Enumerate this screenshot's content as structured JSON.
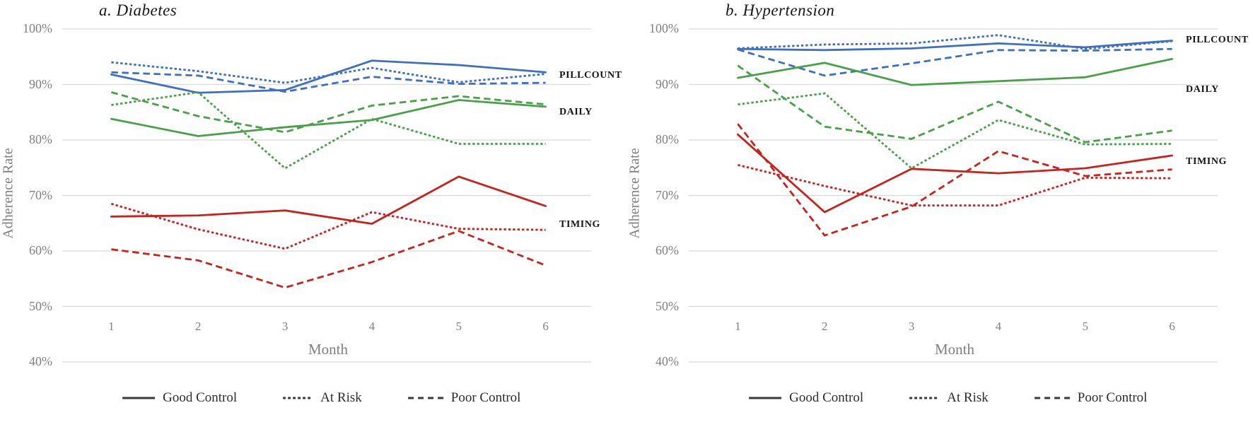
{
  "figure": {
    "y_axis_label": "Adherence Rate",
    "x_axis_label": "Month",
    "y_ticks": [
      "100%",
      "90%",
      "80%",
      "70%",
      "60%",
      "50%",
      "40%"
    ],
    "x_ticks": [
      "1",
      "2",
      "3",
      "4",
      "5",
      "6"
    ],
    "legend": [
      {
        "label": "Good Control",
        "style": "solid"
      },
      {
        "label": "At Risk",
        "style": "dotted"
      },
      {
        "label": "Poor Control",
        "style": "dashed"
      }
    ],
    "colors": {
      "pillcount": "#3f6fc1",
      "daily": "#49a049",
      "timing": "#c8221d",
      "gridline": "#d9d9d9",
      "axis_text": "#7f7f7f",
      "legend_line": "#3a3a3a"
    }
  },
  "chart_data": [
    {
      "type": "line",
      "title": "a. Diabetes",
      "xlabel": "Month",
      "ylabel": "Adherence Rate",
      "x": [
        1,
        2,
        3,
        4,
        5,
        6
      ],
      "ylim": [
        40,
        100
      ],
      "grid": "horizontal",
      "series": [
        {
          "name": "PILLCOUNT Good Control",
          "group": "pillcount",
          "style": "solid",
          "values": [
            91.8,
            88.5,
            89.0,
            94.3,
            93.5,
            92.2
          ]
        },
        {
          "name": "PILLCOUNT At Risk",
          "group": "pillcount",
          "style": "dotted",
          "values": [
            94.0,
            92.4,
            90.3,
            93.0,
            90.4,
            91.9
          ]
        },
        {
          "name": "PILLCOUNT Poor Control",
          "group": "pillcount",
          "style": "dashed",
          "values": [
            92.2,
            91.6,
            88.7,
            91.4,
            90.1,
            90.3
          ]
        },
        {
          "name": "DAILY Good Control",
          "group": "daily",
          "style": "solid",
          "values": [
            83.8,
            80.7,
            82.3,
            83.6,
            87.2,
            86.0
          ]
        },
        {
          "name": "DAILY At Risk",
          "group": "daily",
          "style": "dotted",
          "values": [
            86.3,
            88.6,
            74.9,
            83.8,
            79.3,
            79.3
          ]
        },
        {
          "name": "DAILY Poor Control",
          "group": "daily",
          "style": "dashed",
          "values": [
            88.6,
            84.3,
            81.4,
            86.2,
            87.9,
            86.4
          ]
        },
        {
          "name": "TIMING Good Control",
          "group": "timing",
          "style": "solid",
          "values": [
            66.2,
            66.4,
            67.3,
            64.9,
            73.4,
            68.1
          ]
        },
        {
          "name": "TIMING At Risk",
          "group": "timing",
          "style": "dotted",
          "values": [
            68.5,
            63.9,
            60.4,
            67.0,
            64.0,
            63.8
          ]
        },
        {
          "name": "TIMING Poor Control",
          "group": "timing",
          "style": "dashed",
          "values": [
            60.3,
            58.3,
            53.4,
            58.0,
            63.6,
            57.4
          ]
        }
      ],
      "annotations": [
        {
          "text": "PILLCOUNT",
          "y": 91.6
        },
        {
          "text": "DAILY",
          "y": 85.0
        },
        {
          "text": "TIMING",
          "y": 64.7
        }
      ]
    },
    {
      "type": "line",
      "title": "b. Hypertension",
      "xlabel": "Month",
      "ylabel": "Adherence Rate",
      "x": [
        1,
        2,
        3,
        4,
        5,
        6
      ],
      "ylim": [
        40,
        100
      ],
      "grid": "horizontal",
      "series": [
        {
          "name": "PILLCOUNT Good Control",
          "group": "pillcount",
          "style": "solid",
          "values": [
            96.4,
            96.2,
            96.5,
            97.4,
            96.7,
            97.9
          ]
        },
        {
          "name": "PILLCOUNT At Risk",
          "group": "pillcount",
          "style": "dotted",
          "values": [
            96.5,
            97.2,
            97.4,
            98.9,
            96.4,
            97.8
          ]
        },
        {
          "name": "PILLCOUNT Poor Control",
          "group": "pillcount",
          "style": "dashed",
          "values": [
            96.3,
            91.6,
            93.8,
            96.2,
            96.1,
            96.4
          ]
        },
        {
          "name": "DAILY Good Control",
          "group": "daily",
          "style": "solid",
          "values": [
            91.2,
            93.9,
            89.9,
            90.6,
            91.3,
            94.6
          ]
        },
        {
          "name": "DAILY At Risk",
          "group": "daily",
          "style": "dotted",
          "values": [
            86.4,
            88.4,
            74.9,
            83.6,
            79.2,
            79.3
          ]
        },
        {
          "name": "DAILY Poor Control",
          "group": "daily",
          "style": "dashed",
          "values": [
            93.4,
            82.4,
            80.2,
            86.9,
            79.6,
            81.7
          ]
        },
        {
          "name": "TIMING Good Control",
          "group": "timing",
          "style": "solid",
          "values": [
            81.0,
            67.0,
            74.8,
            74.0,
            74.9,
            77.2
          ]
        },
        {
          "name": "TIMING At Risk",
          "group": "timing",
          "style": "dotted",
          "values": [
            75.5,
            71.7,
            68.2,
            68.2,
            73.2,
            73.1
          ]
        },
        {
          "name": "TIMING Poor Control",
          "group": "timing",
          "style": "dashed",
          "values": [
            82.9,
            62.8,
            68.0,
            78.0,
            73.5,
            74.7
          ]
        }
      ],
      "annotations": [
        {
          "text": "PILLCOUNT",
          "y": 98.0
        },
        {
          "text": "DAILY",
          "y": 89.0
        },
        {
          "text": "TIMING",
          "y": 76.0
        }
      ]
    }
  ]
}
